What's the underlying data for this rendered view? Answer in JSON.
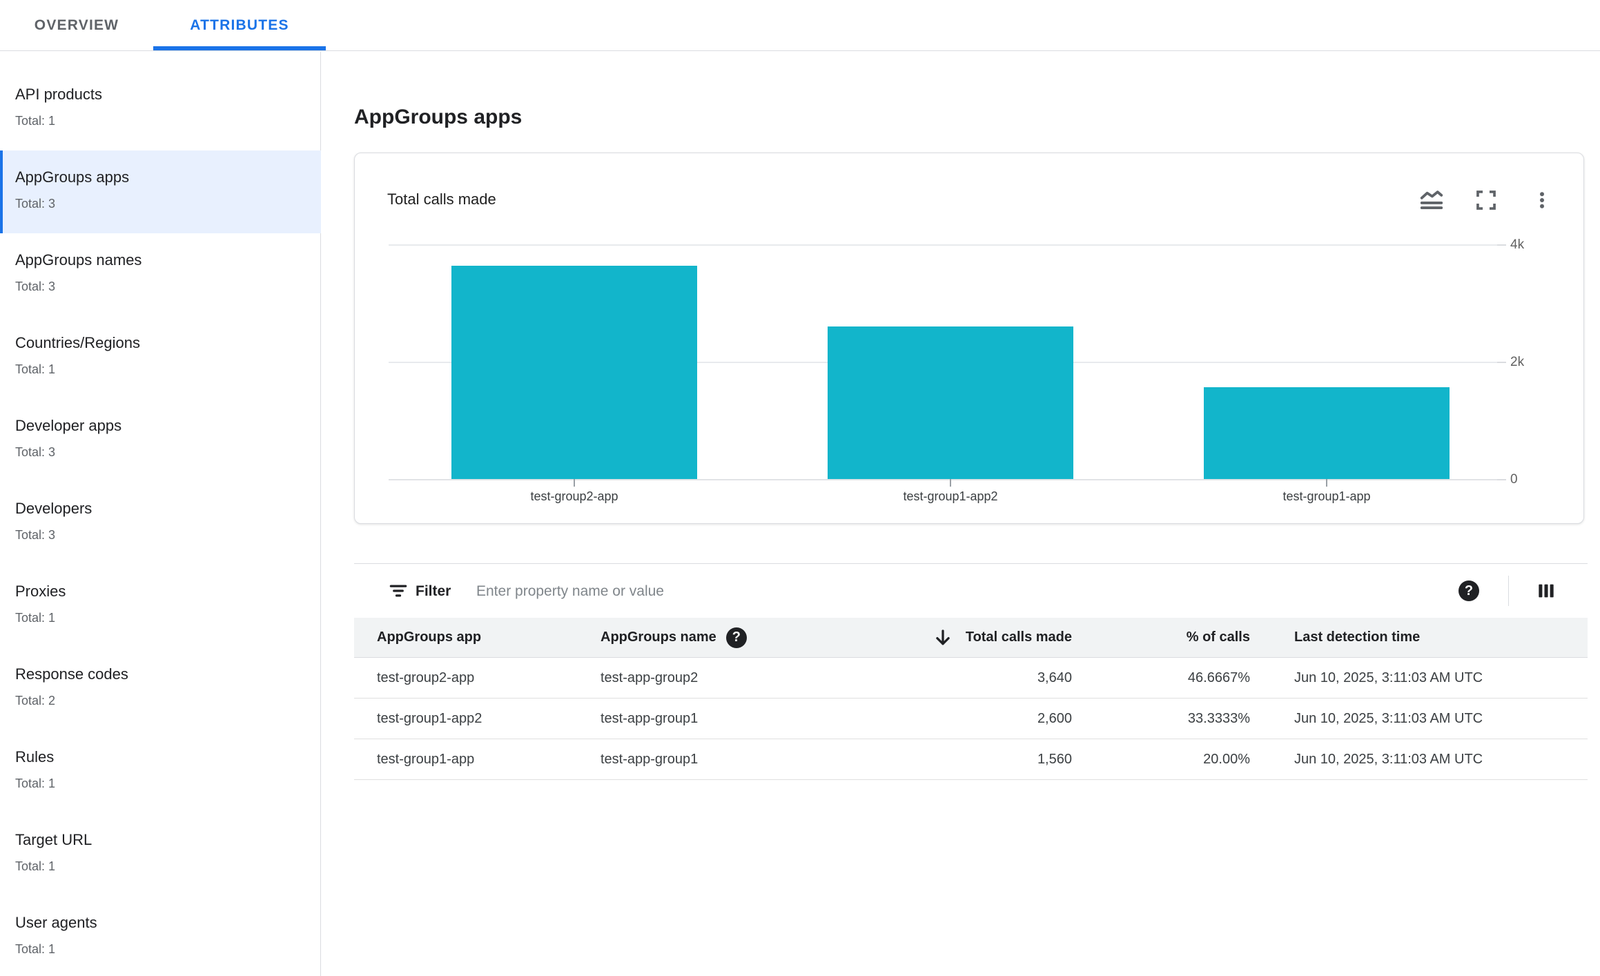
{
  "tabs": [
    {
      "label": "OVERVIEW",
      "active": false
    },
    {
      "label": "ATTRIBUTES",
      "active": true
    }
  ],
  "sidebar": {
    "selected_index": 1,
    "items": [
      {
        "label": "API products",
        "total": "Total: 1"
      },
      {
        "label": "AppGroups apps",
        "total": "Total: 3"
      },
      {
        "label": "AppGroups names",
        "total": "Total: 3"
      },
      {
        "label": "Countries/Regions",
        "total": "Total: 1"
      },
      {
        "label": "Developer apps",
        "total": "Total: 3"
      },
      {
        "label": "Developers",
        "total": "Total: 3"
      },
      {
        "label": "Proxies",
        "total": "Total: 1"
      },
      {
        "label": "Response codes",
        "total": "Total: 2"
      },
      {
        "label": "Rules",
        "total": "Total: 1"
      },
      {
        "label": "Target URL",
        "total": "Total: 1"
      },
      {
        "label": "User agents",
        "total": "Total: 1"
      }
    ]
  },
  "main": {
    "title": "AppGroups apps"
  },
  "chart_card": {
    "title": "Total calls made",
    "icons": [
      "chart-type-icon",
      "fullscreen-icon",
      "more-options-icon"
    ]
  },
  "chart_data": {
    "type": "bar",
    "title": "Total calls made",
    "categories": [
      "test-group2-app",
      "test-group1-app2",
      "test-group1-app"
    ],
    "values": [
      3640,
      2600,
      1560
    ],
    "bar_color": "#12b5cb",
    "xlabel": "",
    "ylabel": "",
    "ylim": [
      0,
      4000
    ],
    "yticks": [
      {
        "value": 0,
        "label": "0"
      },
      {
        "value": 2000,
        "label": "2k"
      },
      {
        "value": 4000,
        "label": "4k"
      }
    ],
    "grid": "horizontal",
    "legend": "none",
    "y_axis_side": "right"
  },
  "filter": {
    "label": "Filter",
    "placeholder": "Enter property name or value"
  },
  "table": {
    "columns": [
      "AppGroups app",
      "AppGroups name",
      "Total calls made",
      "% of calls",
      "Last detection time"
    ],
    "sort": {
      "column": "Total calls made",
      "direction": "desc"
    },
    "rows": [
      {
        "app": "test-group2-app",
        "name": "test-app-group2",
        "calls": "3,640",
        "pct": "46.6667%",
        "last": "Jun 10, 2025, 3:11:03 AM UTC"
      },
      {
        "app": "test-group1-app2",
        "name": "test-app-group1",
        "calls": "2,600",
        "pct": "33.3333%",
        "last": "Jun 10, 2025, 3:11:03 AM UTC"
      },
      {
        "app": "test-group1-app",
        "name": "test-app-group1",
        "calls": "1,560",
        "pct": "20.00%",
        "last": "Jun 10, 2025, 3:11:03 AM UTC"
      }
    ]
  },
  "colors": {
    "accent": "#1a73e8",
    "bar": "#12b5cb",
    "selected_bg": "#e8f0fe",
    "header_bg": "#f1f3f4",
    "border": "#dadce0",
    "text_primary": "#202124",
    "text_secondary": "#5f6368",
    "row_text": "#3c4043"
  }
}
